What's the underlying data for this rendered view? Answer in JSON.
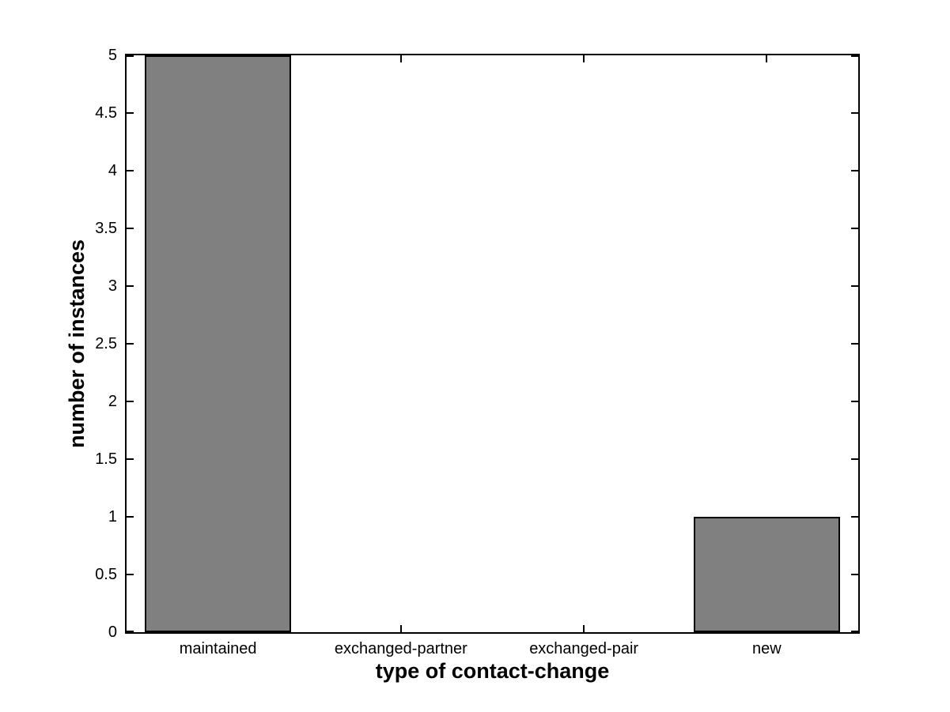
{
  "figure": {
    "background": "#ffffff"
  },
  "chart_data": {
    "type": "bar",
    "categories": [
      "maintained",
      "exchanged-partner",
      "exchanged-pair",
      "new"
    ],
    "values": [
      5,
      0,
      0,
      1
    ],
    "title": "",
    "xlabel": "type of contact-change",
    "ylabel": "number of instances",
    "ylim": [
      0,
      5
    ],
    "yticks": [
      0,
      0.5,
      1,
      1.5,
      2,
      2.5,
      3,
      3.5,
      4,
      4.5,
      5
    ],
    "ytick_labels": [
      "0",
      "0.5",
      "1",
      "1.5",
      "2",
      "2.5",
      "3",
      "3.5",
      "4",
      "4.5",
      "5"
    ],
    "bar_width_fraction": 0.8,
    "grid": false,
    "legend": null,
    "tick_direction": "in",
    "box": true,
    "colors": {
      "bar_fill": "#808080",
      "bar_edge": "#000000",
      "axis": "#000000",
      "text": "#000000",
      "background": "#ffffff"
    }
  }
}
